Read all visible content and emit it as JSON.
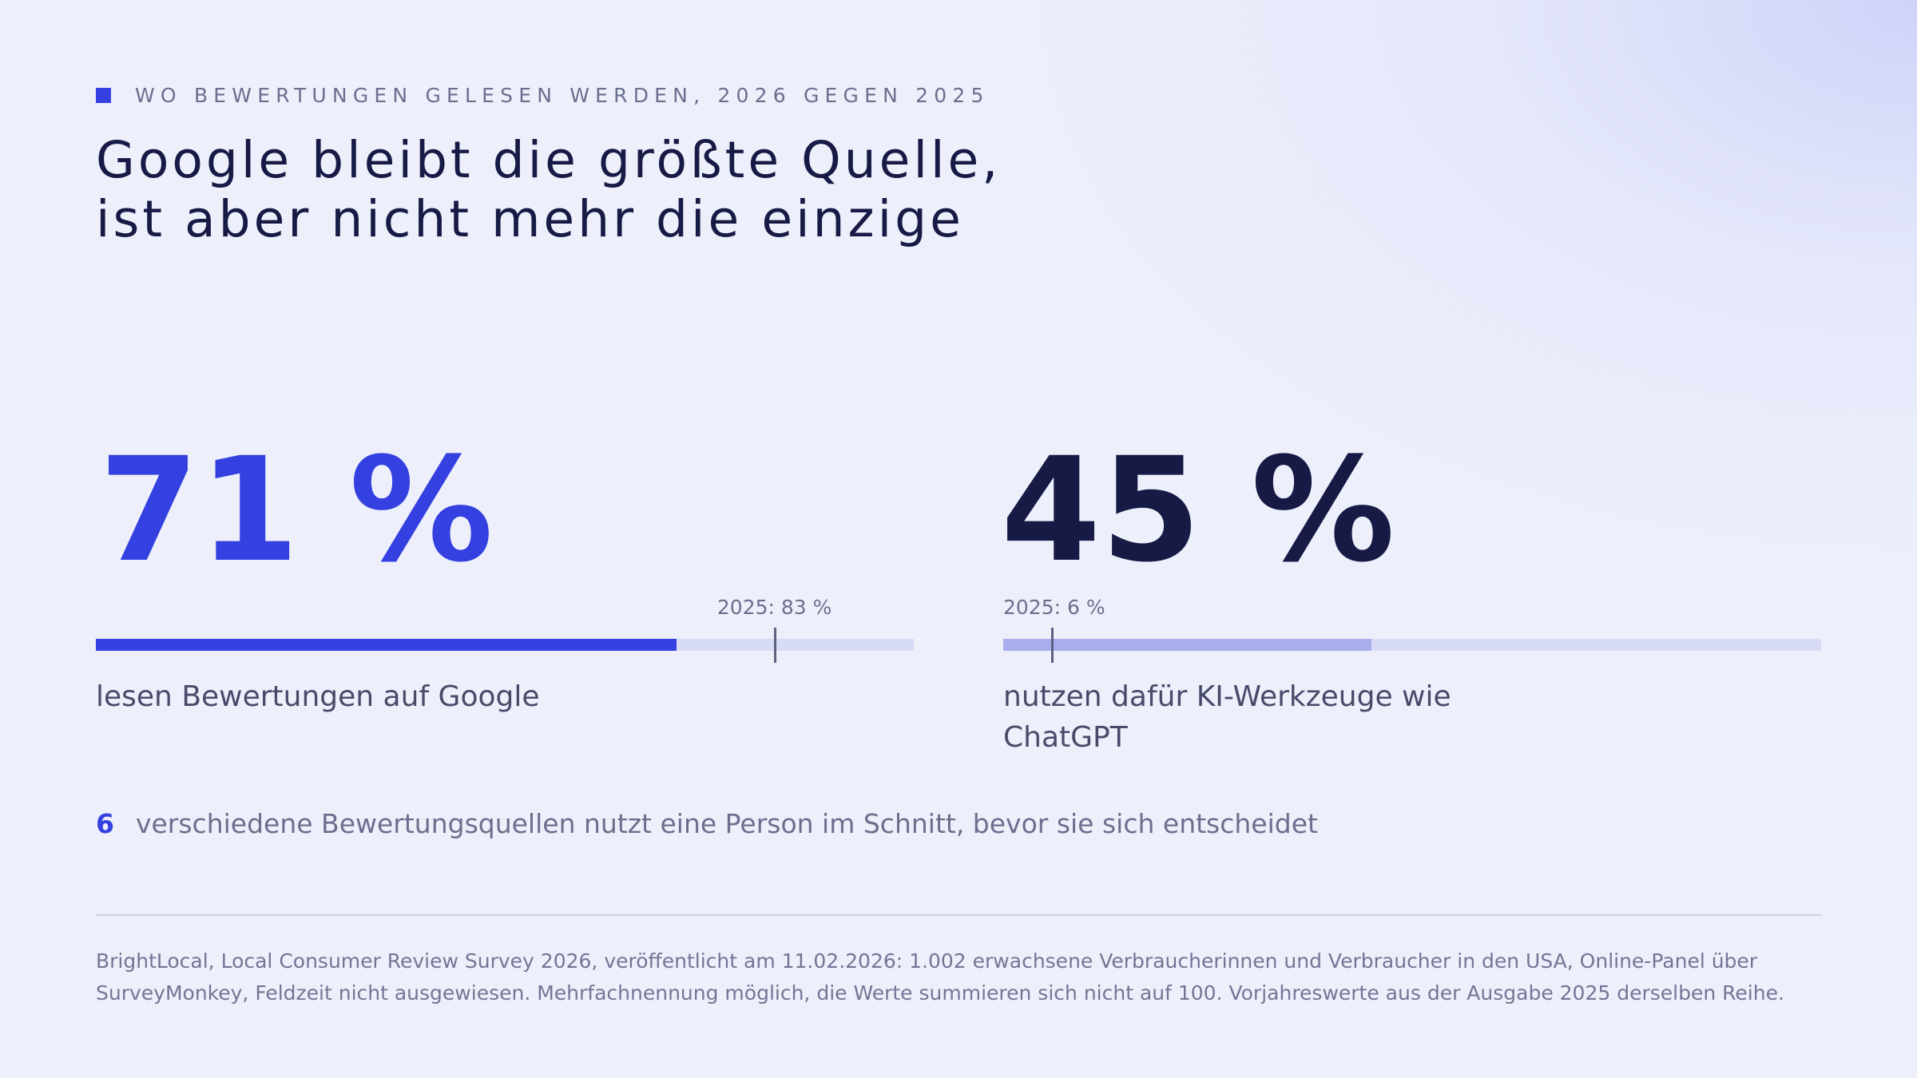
{
  "kicker": "WO BEWERTUNGEN GELESEN WERDEN, 2026 GEGEN 2025",
  "headline": "Google bleibt die größte Quelle, ist aber nicht mehr die einzige",
  "colors": {
    "accent": "#3440e0",
    "dark": "#161a45",
    "bar_secondary": "#a8adee",
    "track": "#d8dbf5",
    "muted_text": "#6b6f8e"
  },
  "chart_data": {
    "type": "bar",
    "orientation": "horizontal",
    "scale_max": 100,
    "unit": "%",
    "series": [
      {
        "value_label": "71 %",
        "value": 71,
        "previous_value": 83,
        "previous_label": "2025: 83 %",
        "description": "lesen Bewertungen auf Google"
      },
      {
        "value_label": "45 %",
        "value": 45,
        "previous_value": 6,
        "previous_label": "2025: 6 %",
        "description": "nutzen dafür KI-Werkzeuge wie ChatGPT"
      }
    ]
  },
  "sources_stat": {
    "value": "6",
    "text": "verschiedene Bewertungsquellen nutzt eine Person im Schnitt, bevor sie sich entscheidet"
  },
  "footnote": "BrightLocal, Local Consumer Review Survey 2026, veröffentlicht am 11.02.2026: 1.002 erwachsene Verbraucherinnen und Verbraucher in den USA, Online-Panel über SurveyMonkey, Feldzeit nicht ausgewiesen. Mehrfachnennung möglich, die Werte summieren sich nicht auf 100. Vorjahreswerte aus der Ausgabe 2025 derselben Reihe."
}
